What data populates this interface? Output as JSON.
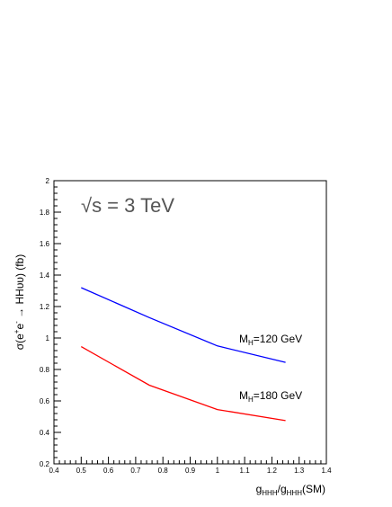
{
  "chart_data": {
    "type": "line",
    "xlabel": "g_HHH/g_HHH(SM)",
    "xlabel_parts": {
      "g1": "g",
      "s1": "HHH",
      "slash": "/",
      "g2": "g",
      "s2": "HHH",
      "tail": "(SM)"
    },
    "ylabel": "σ(e+e- → HHυυ) (fb)",
    "ylabel_parts": {
      "pre": "σ(e",
      "sup1": "+",
      "mid": "e",
      "sup2": "-",
      "post": " → HHυυ) (fb)"
    },
    "xlim": [
      0.4,
      1.4
    ],
    "ylim": [
      0.2,
      2.0
    ],
    "x_ticks": [
      "0.4",
      "0.5",
      "0.6",
      "0.7",
      "0.8",
      "0.9",
      "1",
      "1.1",
      "1.2",
      "1.3",
      "1.4"
    ],
    "y_ticks": [
      "0.2",
      "0.4",
      "0.6",
      "0.8",
      "1",
      "1.2",
      "1.4",
      "1.6",
      "1.8",
      "2"
    ],
    "annotation": "√s = 3 TeV",
    "series": [
      {
        "name": "MH=120 GeV",
        "label_parts": {
          "m": "M",
          "sub": "H",
          "rest": "=120 GeV"
        },
        "color": "#0000ff",
        "x": [
          0.5,
          0.75,
          1.0,
          1.25
        ],
        "y": [
          1.32,
          1.13,
          0.95,
          0.845
        ]
      },
      {
        "name": "MH=180 GeV",
        "label_parts": {
          "m": "M",
          "sub": "H",
          "rest": "=180 GeV"
        },
        "color": "#ff0000",
        "x": [
          0.5,
          0.75,
          1.0,
          1.25
        ],
        "y": [
          0.945,
          0.7,
          0.545,
          0.475
        ]
      }
    ]
  }
}
